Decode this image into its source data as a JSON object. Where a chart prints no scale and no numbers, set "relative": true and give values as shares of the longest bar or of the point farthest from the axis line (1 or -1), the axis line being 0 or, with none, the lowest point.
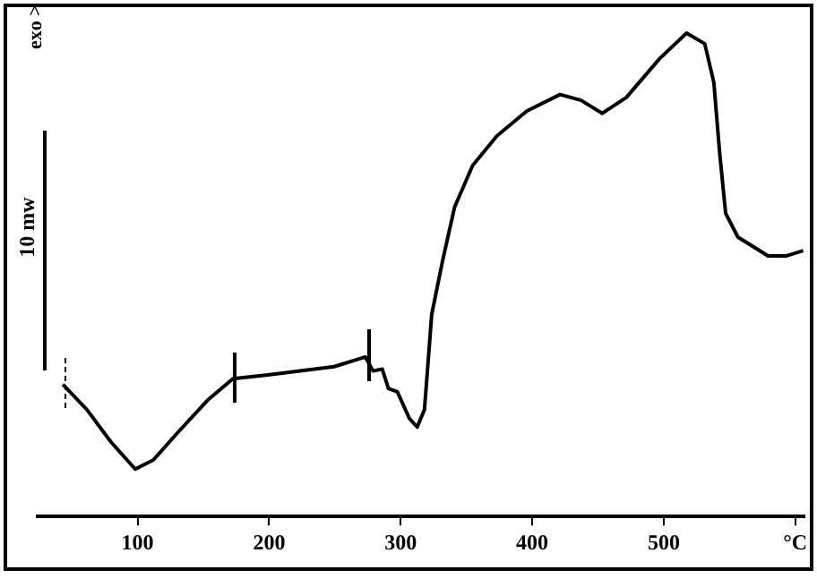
{
  "chart_data": {
    "type": "line",
    "relative": true,
    "marker": "none",
    "xlim": [
      24,
      607
    ],
    "xticks": [
      100,
      200,
      300,
      400,
      500,
      {
        "value": 600,
        "label": "°C"
      }
    ],
    "annotations": [
      "exo >",
      "10 mw"
    ],
    "series": [
      {
        "color": "#000000",
        "x": [
          43.2,
          61.5,
          79.8,
          98.2,
          112,
          130,
          153,
          172.4,
          199,
          249.4,
          273.2,
          279,
          286,
          290.7,
          297.5,
          306.6,
          312.6,
          318.1,
          323.6,
          331.9,
          341,
          354.7,
          373.1,
          396,
          421.2,
          437.2,
          453.3,
          471.6,
          496.8,
          517.4,
          531.2,
          538.1,
          542.6,
          547.1,
          556.4,
          579.3,
          593,
          606
        ],
        "values": [
          0.273,
          0.221,
          0.154,
          0.098,
          0.117,
          0.172,
          0.24,
          0.285,
          0.293,
          0.31,
          0.33,
          0.301,
          0.305,
          0.265,
          0.258,
          0.203,
          0.185,
          0.221,
          0.418,
          0.529,
          0.64,
          0.726,
          0.787,
          0.839,
          0.873,
          0.861,
          0.834,
          0.867,
          0.947,
          1,
          0.978,
          0.898,
          0.75,
          0.627,
          0.578,
          0.539,
          0.539,
          0.55
        ]
      }
    ]
  }
}
